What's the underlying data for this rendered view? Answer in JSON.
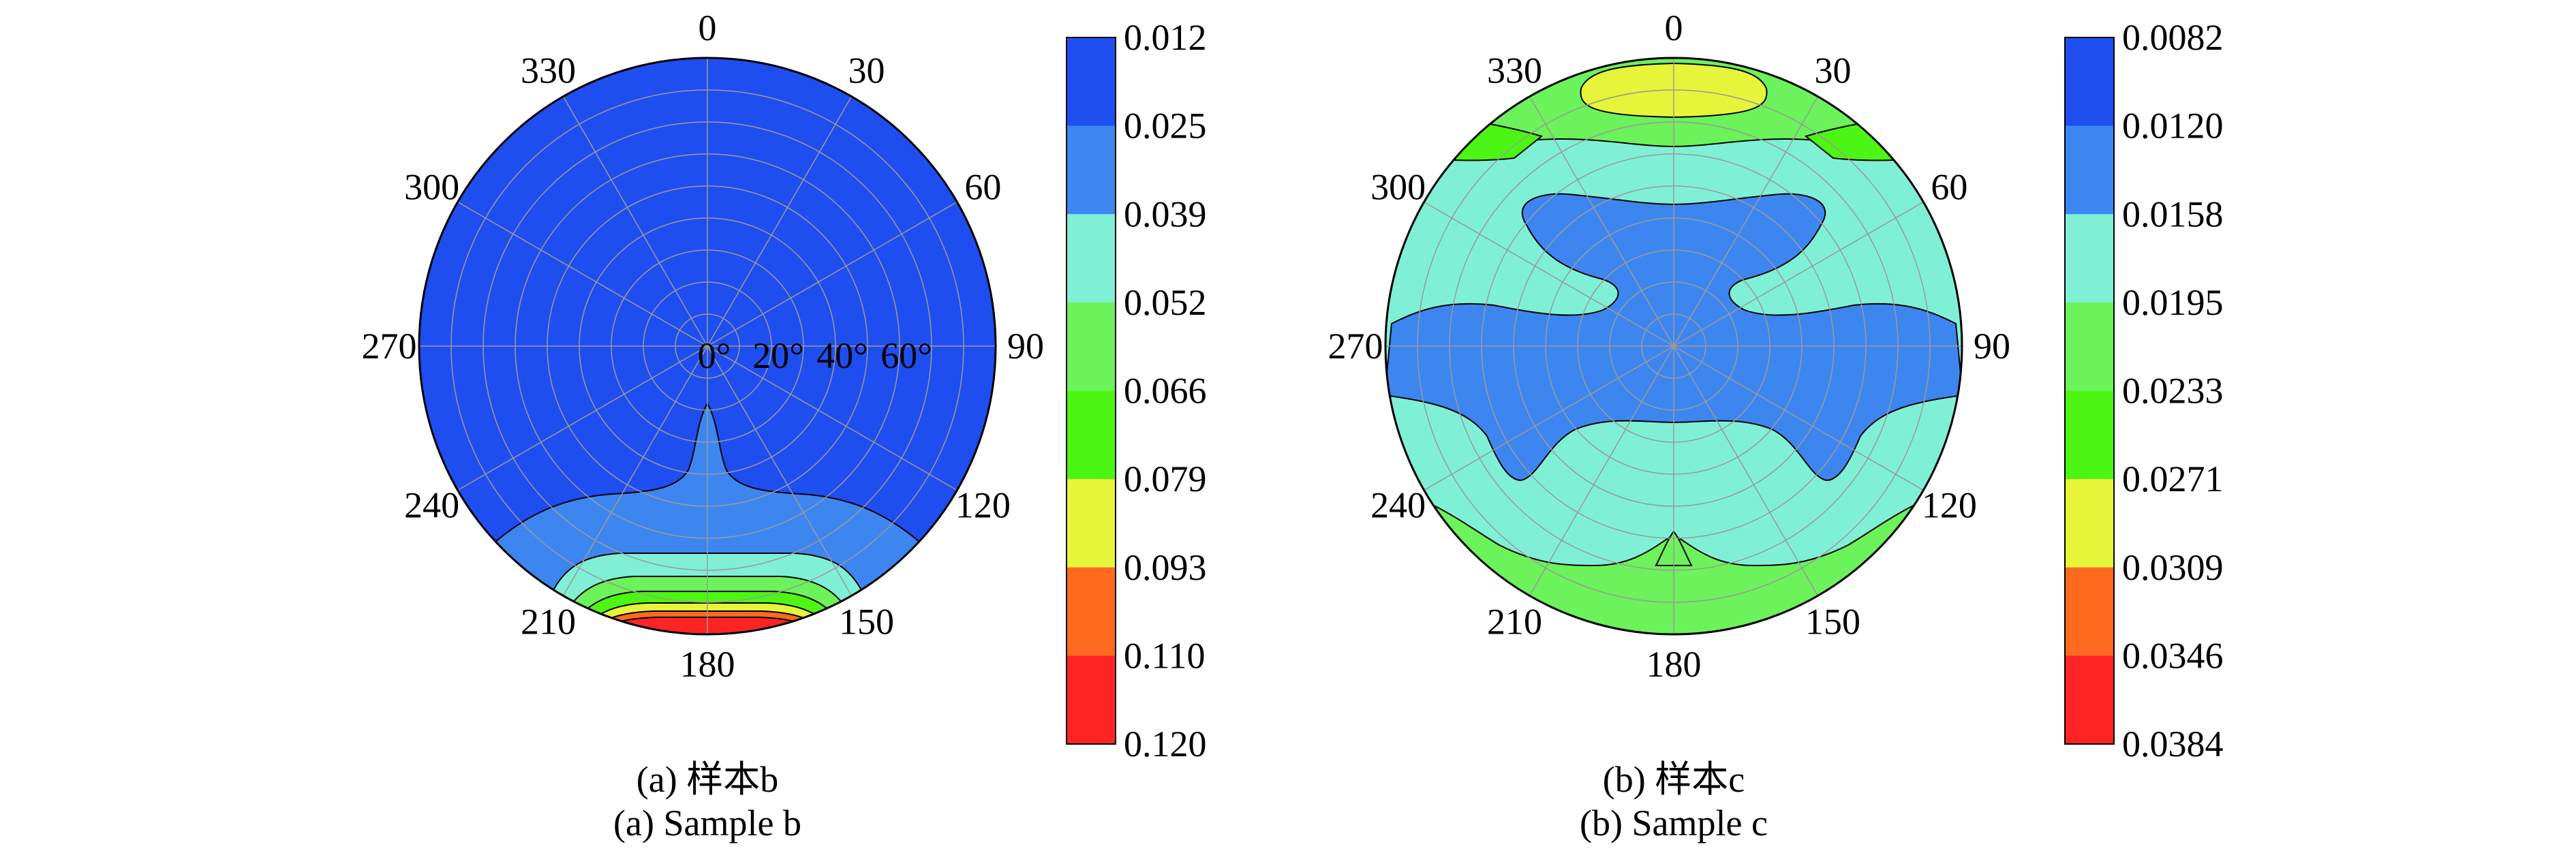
{
  "chart_data": [
    {
      "type": "heatmap",
      "subtype": "polar-contour",
      "angular_ticks": [
        "0",
        "30",
        "60",
        "90",
        "120",
        "150",
        "180",
        "210",
        "240",
        "270",
        "300",
        "330"
      ],
      "radial_ticks": [
        "0°",
        "20°",
        "40°",
        "60°"
      ],
      "radial_range": [
        0,
        90
      ],
      "colorbar": {
        "levels": [
          "0.012",
          "0.025",
          "0.039",
          "0.052",
          "0.066",
          "0.079",
          "0.093",
          "0.110",
          "0.120"
        ],
        "colors": [
          "#1f4ef0",
          "#3d86f0",
          "#7ff0d6",
          "#6cf25a",
          "#4df514",
          "#e6f53a",
          "#ff6a1f",
          "#ff2424"
        ]
      },
      "caption_zh": "(a) 样本b",
      "caption_en": "(a) Sample b"
    },
    {
      "type": "heatmap",
      "subtype": "polar-contour",
      "angular_ticks": [
        "0",
        "30",
        "60",
        "90",
        "120",
        "150",
        "180",
        "210",
        "240",
        "270",
        "300",
        "330"
      ],
      "radial_range": [
        0,
        90
      ],
      "colorbar": {
        "levels": [
          "0.0082",
          "0.0120",
          "0.0158",
          "0.0195",
          "0.0233",
          "0.0271",
          "0.0309",
          "0.0346",
          "0.0384"
        ],
        "colors": [
          "#1f4ef0",
          "#3d86f0",
          "#7ff0d6",
          "#6cf25a",
          "#4df514",
          "#e6f53a",
          "#ff6a1f",
          "#ff2424"
        ]
      },
      "caption_zh": "(b) 样本c",
      "caption_en": "(b) Sample c"
    }
  ]
}
